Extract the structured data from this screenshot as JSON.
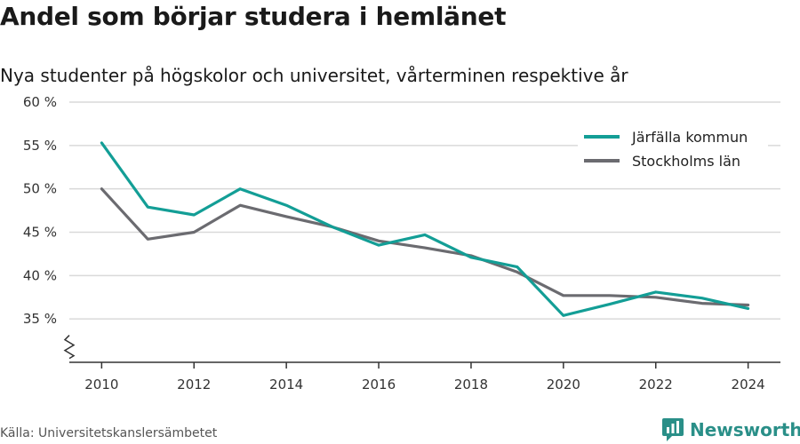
{
  "header": {
    "title": "Andel som börjar studera i hemlänet",
    "subtitle": "Nya studenter på högskolor och universitet, vårterminen respektive år"
  },
  "footer": {
    "source": "Källa: Universitetskanslersämbetet",
    "brand": "Newsworthy"
  },
  "colors": {
    "jarfalla": "#139e96",
    "stockholm": "#6b6b70",
    "grid": "#d9d9d9",
    "axis": "#333333",
    "brand": "#2a8f88"
  },
  "chart_data": {
    "type": "line",
    "title": "Andel som börjar studera i hemlänet",
    "subtitle": "Nya studenter på högskolor och universitet, vårterminen respektive år",
    "xlabel": "",
    "ylabel": "",
    "x": [
      2010,
      2011,
      2012,
      2013,
      2014,
      2015,
      2016,
      2017,
      2018,
      2019,
      2020,
      2021,
      2022,
      2023,
      2024
    ],
    "xlim": [
      2009.3,
      2024.7
    ],
    "ylim": [
      30,
      60
    ],
    "x_ticks": [
      2010,
      2012,
      2014,
      2016,
      2018,
      2020,
      2022,
      2024
    ],
    "x_tick_labels": [
      "2010",
      "2012",
      "2014",
      "2016",
      "2018",
      "2020",
      "2022",
      "2024"
    ],
    "y_ticks": [
      35,
      40,
      45,
      50,
      55,
      60
    ],
    "y_tick_labels": [
      "35 %",
      "40 %",
      "45 %",
      "50 %",
      "55 %",
      "60 %"
    ],
    "y_axis_break": true,
    "grid": "horizontal",
    "legend_position": "top-right",
    "series": [
      {
        "name": "Järfälla kommun",
        "color": "#139e96",
        "values": [
          55.3,
          47.9,
          47.0,
          50.0,
          48.1,
          45.6,
          43.5,
          44.7,
          42.1,
          41.0,
          35.4,
          36.7,
          38.1,
          37.4,
          36.2
        ]
      },
      {
        "name": "Stockholms län",
        "color": "#6b6b70",
        "values": [
          50.0,
          44.2,
          45.0,
          48.1,
          46.8,
          45.6,
          44.0,
          43.2,
          42.3,
          40.4,
          37.7,
          37.7,
          37.5,
          36.8,
          36.6
        ]
      }
    ]
  }
}
